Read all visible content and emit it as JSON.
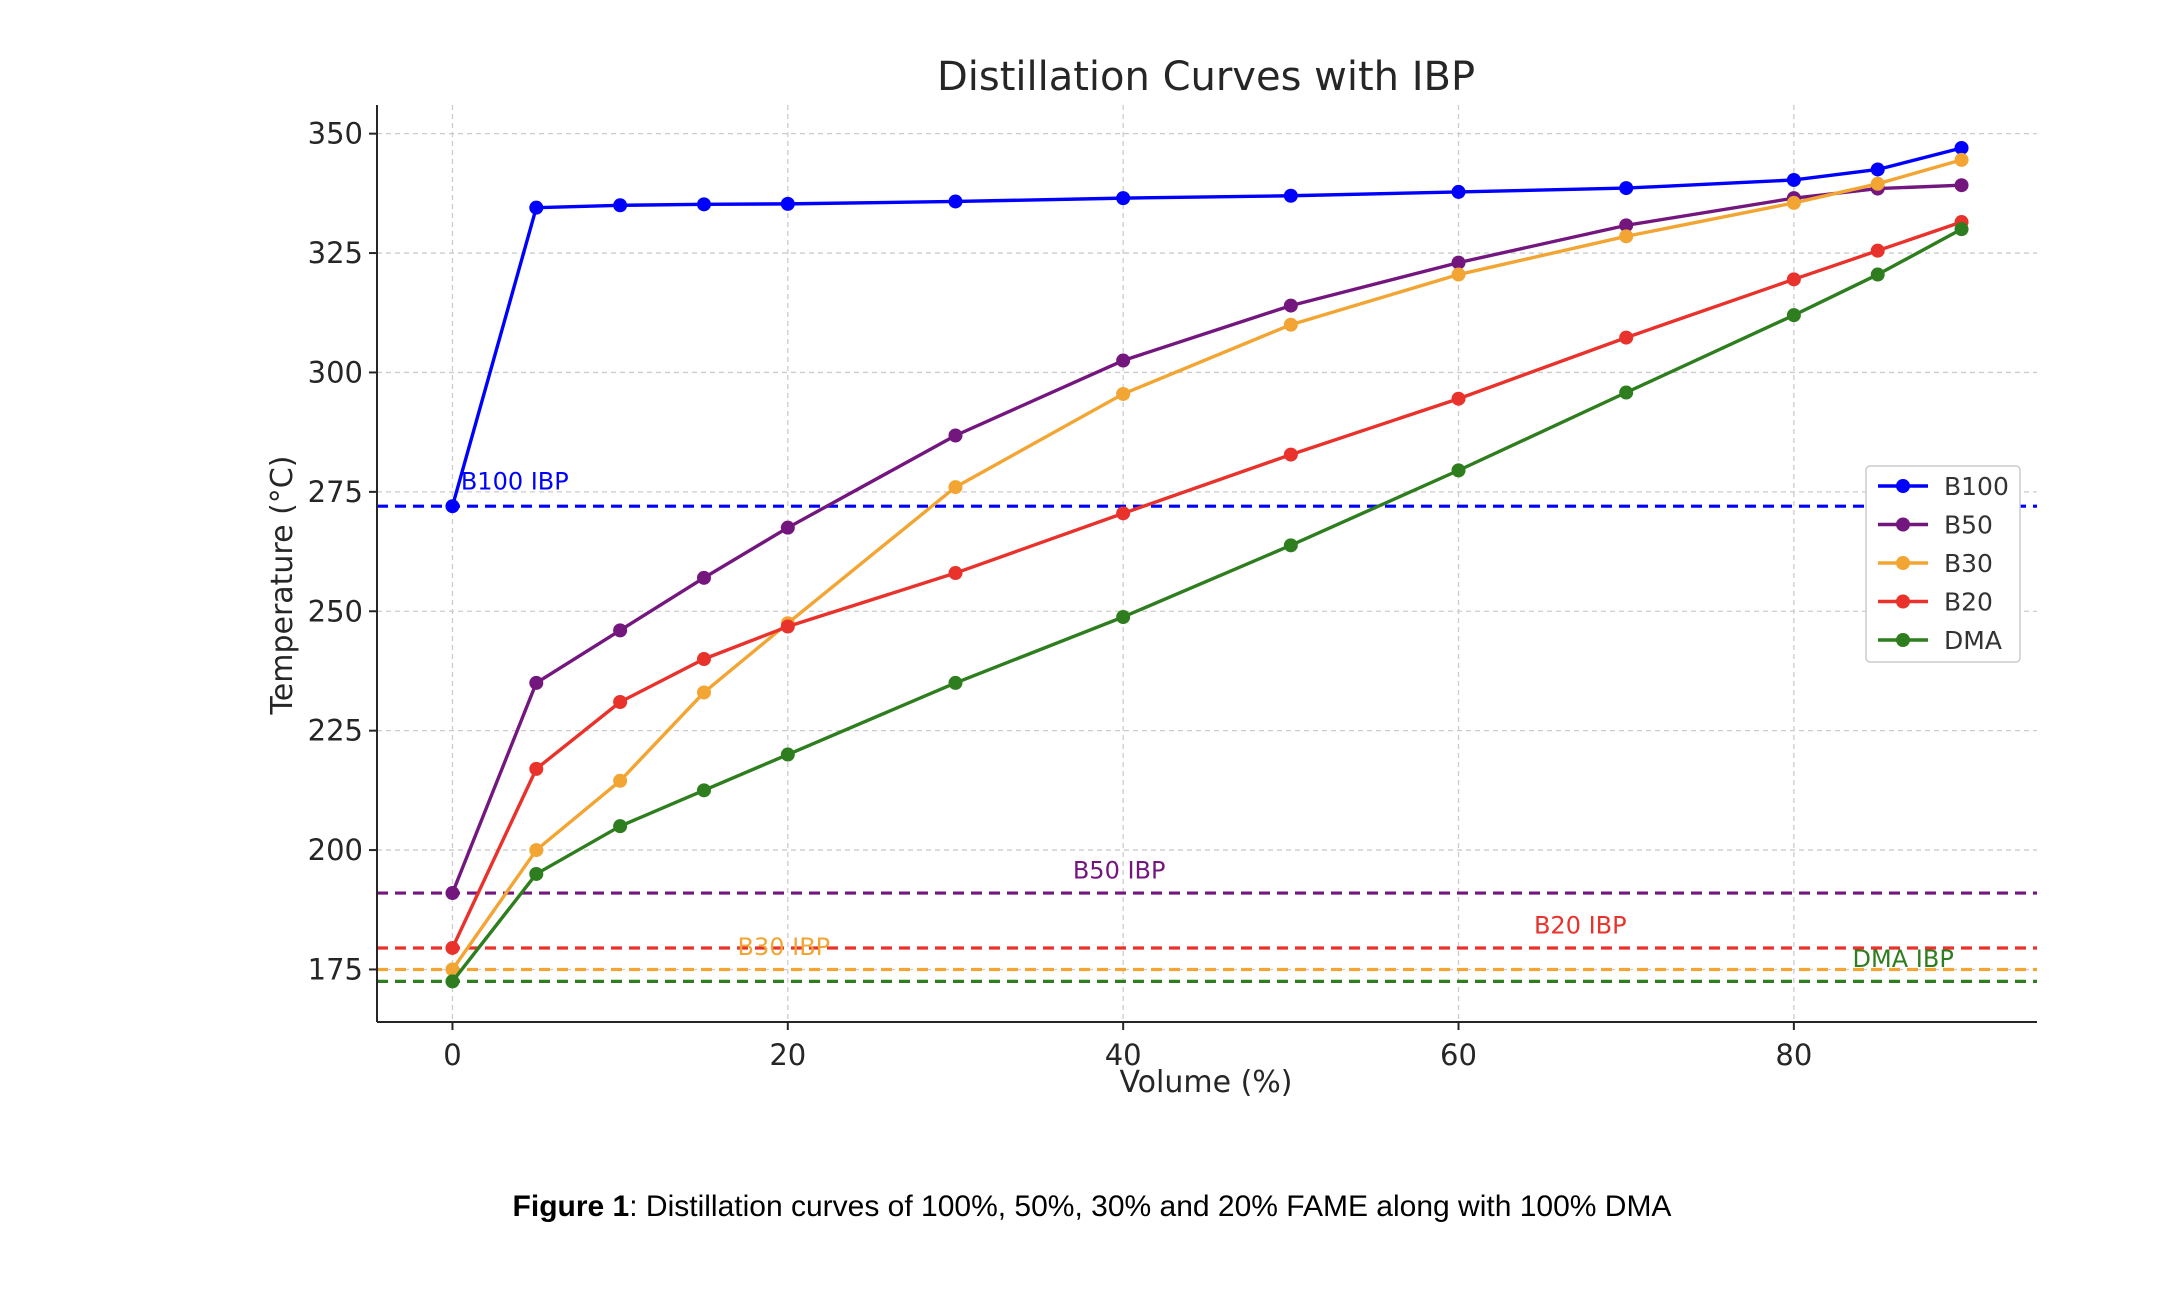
{
  "caption": {
    "label": "Figure 1",
    "text": ": Distillation curves of 100%, 50%, 30% and 20% FAME along with 100% DMA"
  },
  "chart_data": {
    "type": "line",
    "title": "Distillation Curves with IBP",
    "xlabel": "Volume (%)",
    "ylabel": "Temperature (°C)",
    "xlim": [
      -4.5,
      94.5
    ],
    "ylim": [
      164,
      356
    ],
    "xticks": [
      0,
      20,
      40,
      60,
      80
    ],
    "yticks": [
      175,
      200,
      225,
      250,
      275,
      300,
      325,
      350
    ],
    "grid": true,
    "legend_position": "center-right",
    "series": [
      {
        "name": "B100",
        "color": "#0000ff",
        "x": [
          0,
          5,
          10,
          15,
          20,
          30,
          40,
          50,
          60,
          70,
          80,
          85,
          90
        ],
        "y": [
          272,
          334.5,
          335,
          335.2,
          335.3,
          335.8,
          336.5,
          337,
          337.8,
          338.6,
          340.3,
          342.5,
          347
        ]
      },
      {
        "name": "B50",
        "color": "#73177f",
        "x": [
          0,
          5,
          10,
          15,
          20,
          30,
          40,
          50,
          60,
          70,
          80,
          85,
          90
        ],
        "y": [
          191,
          235,
          246,
          257,
          267.5,
          286.8,
          302.5,
          314,
          323,
          330.8,
          336.5,
          338.5,
          339.2
        ]
      },
      {
        "name": "B30",
        "color": "#f3a533",
        "x": [
          0,
          5,
          10,
          15,
          20,
          30,
          40,
          50,
          60,
          70,
          80,
          85,
          90
        ],
        "y": [
          175,
          200,
          214.5,
          233,
          247.5,
          276,
          295.5,
          310,
          320.5,
          328.5,
          335.5,
          339.5,
          344.5
        ]
      },
      {
        "name": "B20",
        "color": "#e8322b",
        "x": [
          0,
          5,
          10,
          15,
          20,
          30,
          40,
          50,
          60,
          70,
          80,
          85,
          90
        ],
        "y": [
          179.5,
          217,
          231,
          240,
          246.8,
          258,
          270.5,
          282.8,
          294.5,
          307.3,
          319.5,
          325.5,
          331.5
        ]
      },
      {
        "name": "DMA",
        "color": "#2e7d1e",
        "x": [
          0,
          5,
          10,
          15,
          20,
          30,
          40,
          50,
          60,
          70,
          80,
          85,
          90
        ],
        "y": [
          172.5,
          195,
          205,
          212.5,
          220,
          235,
          248.8,
          263.8,
          279.5,
          295.8,
          312,
          320.5,
          330
        ]
      }
    ],
    "ibp_lines": [
      {
        "label": "B100 IBP",
        "value": 272,
        "color": "#0000ff",
        "label_x": 0.5,
        "label_y": 275.5
      },
      {
        "label": "B50 IBP",
        "value": 191,
        "color": "#73177f",
        "label_x": 37,
        "label_y": 194
      },
      {
        "label": "B20 IBP",
        "value": 179.5,
        "color": "#e8322b",
        "label_x": 64.5,
        "label_y": 182.5
      },
      {
        "label": "B30 IBP",
        "value": 175,
        "color": "#f3a533",
        "label_x": 17,
        "label_y": 178
      },
      {
        "label": "DMA IBP",
        "value": 172.5,
        "color": "#2e7d1e",
        "label_x": 83.5,
        "label_y": 175.5
      }
    ]
  }
}
